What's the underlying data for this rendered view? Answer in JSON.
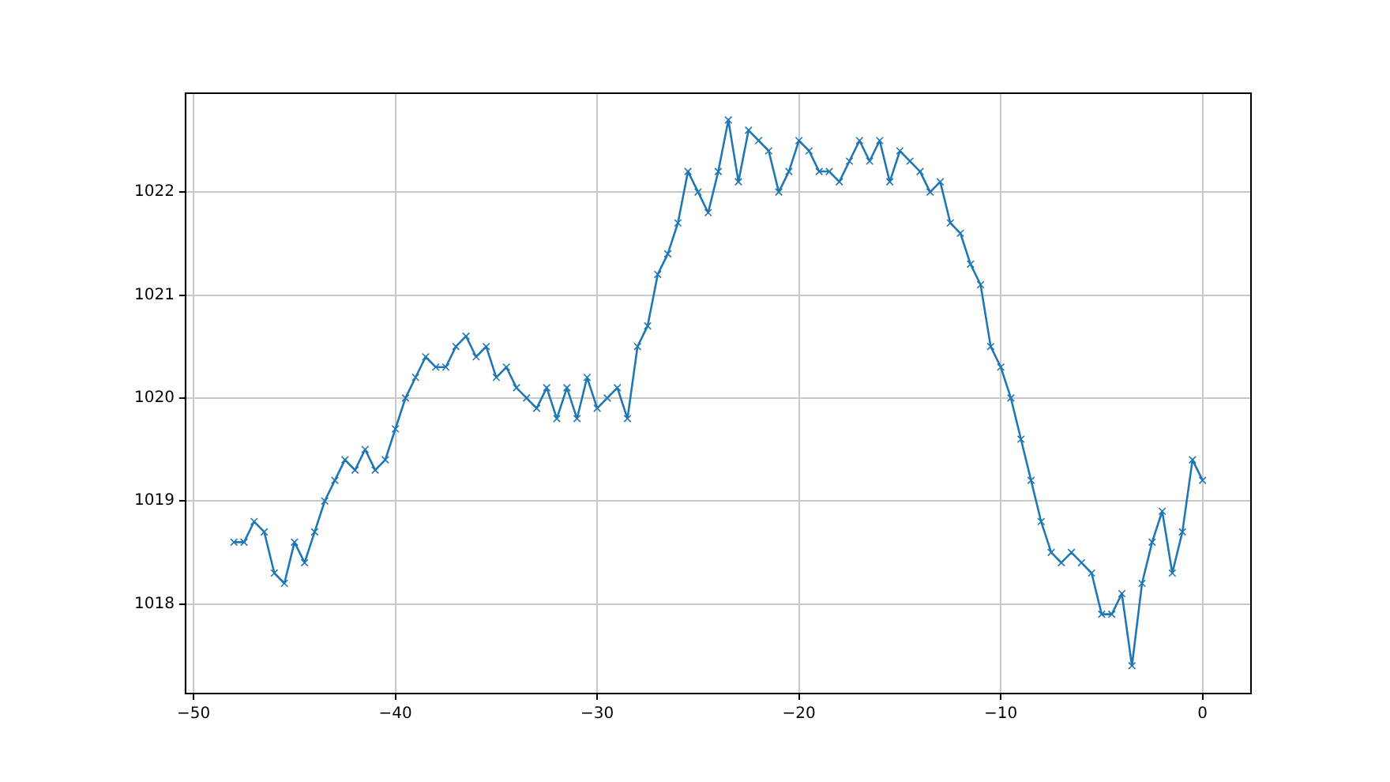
{
  "chart_data": {
    "type": "line",
    "marker": "cross",
    "grid": true,
    "xlim": [
      -50.4,
      2.4
    ],
    "ylim": [
      1017.13,
      1022.96
    ],
    "xticks": [
      {
        "value": -50,
        "label": "−50"
      },
      {
        "value": -40,
        "label": "−40"
      },
      {
        "value": -30,
        "label": "−30"
      },
      {
        "value": -20,
        "label": "−20"
      },
      {
        "value": -10,
        "label": "−10"
      },
      0
    ],
    "yticks": [
      1018,
      1019,
      1020,
      1021,
      1022
    ],
    "x": [
      -48,
      -47.5,
      -47,
      -46.5,
      -46,
      -45.5,
      -45,
      -44.5,
      -44,
      -43.5,
      -43,
      -42.5,
      -42,
      -41.5,
      -41,
      -40.5,
      -40,
      -39.5,
      -39,
      -38.5,
      -38,
      -37.5,
      -37,
      -36.5,
      -36,
      -35.5,
      -35,
      -34.5,
      -34,
      -33.5,
      -33,
      -32.5,
      -32,
      -31.5,
      -31,
      -30.5,
      -30,
      -29.5,
      -29,
      -28.5,
      -28,
      -27.5,
      -27,
      -26.5,
      -26,
      -25.5,
      -25,
      -24.5,
      -24,
      -23.5,
      -23,
      -22.5,
      -22,
      -21.5,
      -21,
      -20.5,
      -20,
      -19.5,
      -19,
      -18.5,
      -18,
      -17.5,
      -17,
      -16.5,
      -16,
      -15.5,
      -15,
      -14.5,
      -14,
      -13.5,
      -13,
      -12.5,
      -12,
      -11.5,
      -11,
      -10.5,
      -10,
      -9.5,
      -9,
      -8.5,
      -8,
      -7.5,
      -7,
      -6.5,
      -6,
      -5.5,
      -5,
      -4.5,
      -4,
      -3.5,
      -3,
      -2.5,
      -2,
      -1.5,
      -1,
      -0.5,
      0
    ],
    "series": [
      {
        "color": "#1f77b4",
        "values": [
          1018.6,
          1018.6,
          1018.8,
          1018.7,
          1018.3,
          1018.2,
          1018.6,
          1018.4,
          1018.7,
          1019.0,
          1019.2,
          1019.4,
          1019.3,
          1019.5,
          1019.3,
          1019.4,
          1019.7,
          1020.0,
          1020.2,
          1020.4,
          1020.3,
          1020.3,
          1020.5,
          1020.6,
          1020.4,
          1020.5,
          1020.2,
          1020.3,
          1020.1,
          1020.0,
          1019.9,
          1020.1,
          1019.8,
          1020.1,
          1019.8,
          1020.2,
          1019.9,
          1020.0,
          1020.1,
          1019.8,
          1020.5,
          1020.7,
          1021.2,
          1021.4,
          1021.7,
          1022.2,
          1022.0,
          1021.8,
          1022.2,
          1022.7,
          1022.1,
          1022.6,
          1022.5,
          1022.4,
          1022.0,
          1022.2,
          1022.5,
          1022.4,
          1022.2,
          1022.2,
          1022.1,
          1022.3,
          1022.5,
          1022.3,
          1022.5,
          1022.1,
          1022.4,
          1022.3,
          1022.2,
          1022.0,
          1022.1,
          1021.7,
          1021.6,
          1021.3,
          1021.1,
          1020.5,
          1020.3,
          1020.0,
          1019.6,
          1019.2,
          1018.8,
          1018.5,
          1018.4,
          1018.5,
          1018.4,
          1018.3,
          1017.9,
          1017.9,
          1018.1,
          1017.4,
          1018.2,
          1018.6,
          1018.9,
          1018.3,
          1018.7,
          1019.4,
          1019.2
        ]
      }
    ]
  }
}
